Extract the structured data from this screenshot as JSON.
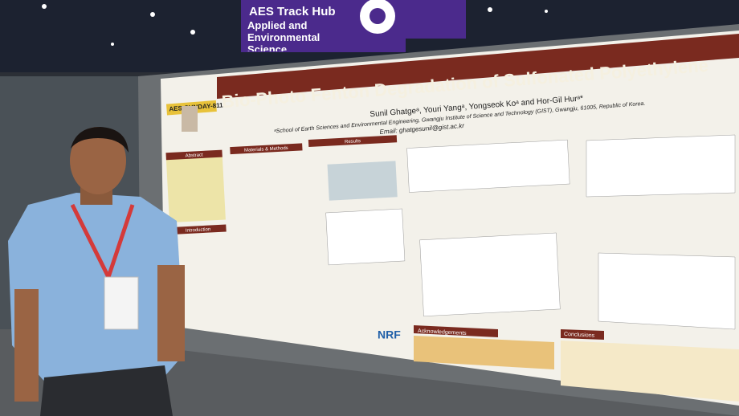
{
  "sign": {
    "title": "AES Track Hub",
    "subtitle": "Applied and Environmental Science"
  },
  "poster": {
    "tag": "AES-SUNDAY-811",
    "title": "Bio-Photo Fenton Degradation of Sulfonated Polyethylene",
    "authors": "Sunil Ghatgeᵃ, Youri Yangᵃ, Yongseok Koᵃ and Hor-Gil Hurᵃ*",
    "affiliation": "ᵃSchool of Earth Sciences and Environmental Engineering, Gwangju Institute of Science and Technology (GIST), Gwangju, 61005, Republic of Korea.",
    "email": "Email: ghatgesunil@gist.ac.kr",
    "sections": [
      "Abstract",
      "Materials & Methods",
      "Results",
      "Introduction",
      "Acknowledgements",
      "Conclusions"
    ],
    "logo": "NRF"
  }
}
